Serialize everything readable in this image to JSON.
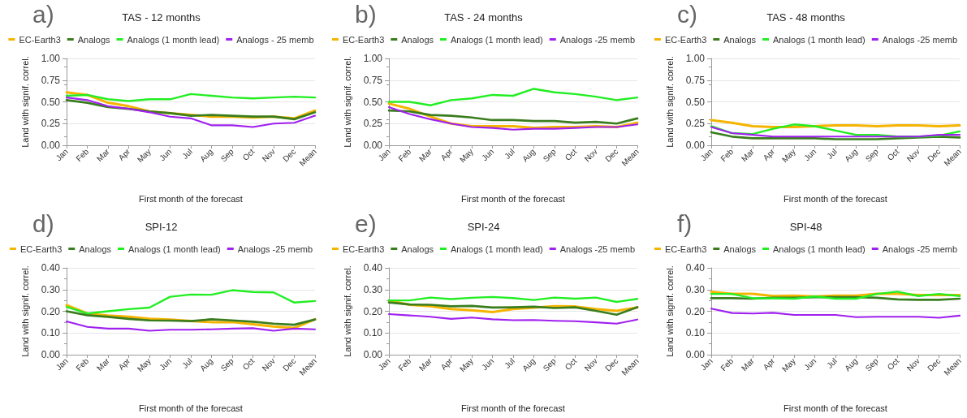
{
  "chart_data": [
    {
      "type": "line",
      "title": "TAS - 12 months",
      "annotations": [
        "a)"
      ],
      "xlabel": "First month of the forecast",
      "ylabel": "Land with signif. correl.",
      "categories": [
        "Jan",
        "Feb",
        "Mar",
        "Apr",
        "May",
        "Jun",
        "Jul",
        "Aug",
        "Sep",
        "Oct",
        "Nov",
        "Dec",
        "Mean"
      ],
      "ylim": [
        0,
        1
      ],
      "yticks": [
        {
          "value": 0,
          "label": "0.00"
        },
        {
          "value": 0.25,
          "label": "0.25"
        },
        {
          "value": 0.5,
          "label": "0.50"
        },
        {
          "value": 0.75,
          "label": "0.75"
        },
        {
          "value": 1,
          "label": "1.00"
        }
      ],
      "grid": "y",
      "legend": "top",
      "marker": "none",
      "line_style": "solid",
      "series": [
        {
          "name": "EC-Earth3",
          "color": "#f5b400",
          "values": [
            0.61,
            0.58,
            0.49,
            0.45,
            0.39,
            0.37,
            0.35,
            0.33,
            0.33,
            0.32,
            0.33,
            0.31,
            0.4
          ]
        },
        {
          "name": "Analogs",
          "color": "#3a7d1e",
          "values": [
            0.52,
            0.49,
            0.44,
            0.42,
            0.39,
            0.37,
            0.34,
            0.35,
            0.34,
            0.33,
            0.33,
            0.3,
            0.38
          ]
        },
        {
          "name": "Analogs (1 month lead)",
          "color": "#22ee22",
          "values": [
            0.57,
            0.58,
            0.53,
            0.51,
            0.53,
            0.53,
            0.59,
            0.57,
            0.55,
            0.54,
            0.55,
            0.56,
            0.55
          ]
        },
        {
          "name": "Analogs - 25 memb",
          "color": "#a020f0",
          "values": [
            0.55,
            0.52,
            0.45,
            0.42,
            0.38,
            0.33,
            0.31,
            0.23,
            0.23,
            0.21,
            0.25,
            0.26,
            0.34
          ]
        }
      ]
    },
    {
      "type": "line",
      "title": "TAS - 24 months",
      "annotations": [
        "b)"
      ],
      "xlabel": "First month of the forecast",
      "ylabel": "Land with signif. correl.",
      "categories": [
        "Jan",
        "Feb",
        "Mar",
        "Apr",
        "May",
        "Jun",
        "Jul",
        "Aug",
        "Sep",
        "Oct",
        "Nov",
        "Dec",
        "Mean"
      ],
      "ylim": [
        0,
        1
      ],
      "yticks": [
        {
          "value": 0,
          "label": "0.00"
        },
        {
          "value": 0.25,
          "label": "0.25"
        },
        {
          "value": 0.5,
          "label": "0.50"
        },
        {
          "value": 0.75,
          "label": "0.75"
        },
        {
          "value": 1,
          "label": "1.00"
        }
      ],
      "grid": "y",
      "legend": "top",
      "marker": "none",
      "line_style": "solid",
      "series": [
        {
          "name": "EC-Earth3",
          "color": "#f5b400",
          "values": [
            0.48,
            0.42,
            0.33,
            0.25,
            0.22,
            0.22,
            0.22,
            0.2,
            0.21,
            0.21,
            0.22,
            0.21,
            0.26
          ]
        },
        {
          "name": "Analogs",
          "color": "#3a7d1e",
          "values": [
            0.4,
            0.39,
            0.35,
            0.34,
            0.32,
            0.29,
            0.29,
            0.28,
            0.28,
            0.26,
            0.27,
            0.25,
            0.31
          ]
        },
        {
          "name": "Analogs (1 month lead)",
          "color": "#22ee22",
          "values": [
            0.5,
            0.5,
            0.46,
            0.52,
            0.54,
            0.58,
            0.57,
            0.65,
            0.61,
            0.59,
            0.56,
            0.52,
            0.55
          ]
        },
        {
          "name": "Analogs -25 memb",
          "color": "#a020f0",
          "values": [
            0.44,
            0.36,
            0.3,
            0.25,
            0.21,
            0.2,
            0.18,
            0.19,
            0.19,
            0.2,
            0.21,
            0.21,
            0.24
          ]
        }
      ]
    },
    {
      "type": "line",
      "title": "TAS - 48 months",
      "annotations": [
        "c)"
      ],
      "xlabel": "First month of the forecast",
      "ylabel": "Land with signif. correl.",
      "categories": [
        "Jan",
        "Feb",
        "Mar",
        "Apr",
        "May",
        "Jun",
        "Jul",
        "Aug",
        "Sep",
        "Oct",
        "Nov",
        "Dec",
        "Mean"
      ],
      "ylim": [
        0,
        1
      ],
      "yticks": [
        {
          "value": 0,
          "label": "0.00"
        },
        {
          "value": 0.25,
          "label": "0.25"
        },
        {
          "value": 0.5,
          "label": "0.50"
        },
        {
          "value": 0.75,
          "label": "0.75"
        },
        {
          "value": 1,
          "label": "1.00"
        }
      ],
      "grid": "y",
      "legend": "top",
      "marker": "none",
      "line_style": "solid",
      "series": [
        {
          "name": "EC-Earth3",
          "color": "#f5b400",
          "values": [
            0.29,
            0.26,
            0.22,
            0.21,
            0.21,
            0.22,
            0.23,
            0.23,
            0.22,
            0.23,
            0.23,
            0.22,
            0.23
          ]
        },
        {
          "name": "Analogs",
          "color": "#3a7d1e",
          "values": [
            0.15,
            0.1,
            0.08,
            0.08,
            0.08,
            0.08,
            0.07,
            0.07,
            0.07,
            0.08,
            0.09,
            0.1,
            0.09
          ]
        },
        {
          "name": "Analogs (1 month lead)",
          "color": "#22ee22",
          "values": [
            0.22,
            0.14,
            0.13,
            0.19,
            0.24,
            0.22,
            0.17,
            0.12,
            0.12,
            0.1,
            0.1,
            0.11,
            0.16
          ]
        },
        {
          "name": "Analogs -25 memb",
          "color": "#a020f0",
          "values": [
            0.21,
            0.14,
            0.12,
            0.1,
            0.1,
            0.1,
            0.1,
            0.1,
            0.1,
            0.1,
            0.1,
            0.12,
            0.12
          ]
        }
      ]
    },
    {
      "type": "line",
      "title": "SPI-12",
      "annotations": [
        "d)"
      ],
      "xlabel": "First month of the forecast",
      "ylabel": "Land with signif. correl.",
      "categories": [
        "Jan",
        "Feb",
        "Mar",
        "Apr",
        "May",
        "Jun",
        "Jul",
        "Aug",
        "Sep",
        "Oct",
        "Nov",
        "Dec",
        "Mean"
      ],
      "ylim": [
        0,
        0.4
      ],
      "yticks": [
        {
          "value": 0,
          "label": "0.00"
        },
        {
          "value": 0.1,
          "label": "0.10"
        },
        {
          "value": 0.2,
          "label": "0.20"
        },
        {
          "value": 0.3,
          "label": "0.30"
        },
        {
          "value": 0.4,
          "label": "0.40"
        }
      ],
      "grid": "y",
      "legend": "top",
      "marker": "none",
      "line_style": "solid",
      "series": [
        {
          "name": "EC-Earth3",
          "color": "#f5b400",
          "values": [
            0.228,
            0.19,
            0.18,
            0.175,
            0.165,
            0.162,
            0.155,
            0.15,
            0.15,
            0.14,
            0.13,
            0.123,
            0.163
          ]
        },
        {
          "name": "Analogs",
          "color": "#3a7d1e",
          "values": [
            0.2,
            0.182,
            0.174,
            0.165,
            0.158,
            0.157,
            0.155,
            0.163,
            0.158,
            0.152,
            0.143,
            0.138,
            0.162
          ]
        },
        {
          "name": "Analogs (1 month lead)",
          "color": "#22ee22",
          "values": [
            0.22,
            0.19,
            0.2,
            0.21,
            0.217,
            0.267,
            0.277,
            0.276,
            0.297,
            0.289,
            0.287,
            0.24,
            0.247
          ]
        },
        {
          "name": "Analogs -25 memb",
          "color": "#a020f0",
          "values": [
            0.153,
            0.128,
            0.12,
            0.12,
            0.11,
            0.115,
            0.115,
            0.117,
            0.12,
            0.122,
            0.11,
            0.12,
            0.117
          ]
        }
      ]
    },
    {
      "type": "line",
      "title": "SPI-24",
      "annotations": [
        "e)"
      ],
      "xlabel": "First month of the forecast",
      "ylabel": "Land with signif. correl.",
      "categories": [
        "Jan",
        "Feb",
        "Mar",
        "Apr",
        "May",
        "Jun",
        "Jul",
        "Aug",
        "Sep",
        "Oct",
        "Nov",
        "Dec",
        "Mean"
      ],
      "ylim": [
        0,
        0.4
      ],
      "yticks": [
        {
          "value": 0,
          "label": "0.00"
        },
        {
          "value": 0.1,
          "label": "0.10"
        },
        {
          "value": 0.2,
          "label": "0.20"
        },
        {
          "value": 0.3,
          "label": "0.30"
        },
        {
          "value": 0.4,
          "label": "0.40"
        }
      ],
      "grid": "y",
      "legend": "top",
      "marker": "none",
      "line_style": "solid",
      "series": [
        {
          "name": "EC-Earth3",
          "color": "#f5b400",
          "values": [
            0.25,
            0.23,
            0.223,
            0.21,
            0.205,
            0.196,
            0.21,
            0.217,
            0.223,
            0.222,
            0.21,
            0.202,
            0.218
          ]
        },
        {
          "name": "Analogs",
          "color": "#3a7d1e",
          "values": [
            0.241,
            0.231,
            0.23,
            0.223,
            0.225,
            0.217,
            0.218,
            0.221,
            0.215,
            0.218,
            0.202,
            0.184,
            0.219
          ]
        },
        {
          "name": "Analogs (1 month lead)",
          "color": "#22ee22",
          "values": [
            0.25,
            0.25,
            0.263,
            0.256,
            0.262,
            0.266,
            0.261,
            0.252,
            0.263,
            0.258,
            0.263,
            0.243,
            0.257
          ]
        },
        {
          "name": "Analogs -25 memb",
          "color": "#a020f0",
          "values": [
            0.187,
            0.181,
            0.175,
            0.165,
            0.171,
            0.163,
            0.159,
            0.16,
            0.156,
            0.154,
            0.149,
            0.143,
            0.162
          ]
        }
      ]
    },
    {
      "type": "line",
      "title": "SPI-48",
      "annotations": [
        "f)"
      ],
      "xlabel": "First month of the forecast",
      "ylabel": "Land with signif. correl.",
      "categories": [
        "Jan",
        "Feb",
        "Mar",
        "Apr",
        "May",
        "Jun",
        "Jul",
        "Aug",
        "Sep",
        "Oct",
        "Nov",
        "Dec",
        "Mean"
      ],
      "ylim": [
        0,
        0.4
      ],
      "yticks": [
        {
          "value": 0,
          "label": "0.00"
        },
        {
          "value": 0.1,
          "label": "0.10"
        },
        {
          "value": 0.2,
          "label": "0.20"
        },
        {
          "value": 0.3,
          "label": "0.30"
        },
        {
          "value": 0.4,
          "label": "0.40"
        }
      ],
      "grid": "y",
      "legend": "top",
      "marker": "none",
      "line_style": "solid",
      "series": [
        {
          "name": "EC-Earth3",
          "color": "#f5b400",
          "values": [
            0.29,
            0.28,
            0.28,
            0.27,
            0.272,
            0.268,
            0.272,
            0.272,
            0.28,
            0.28,
            0.275,
            0.275,
            0.275
          ]
        },
        {
          "name": "Analogs",
          "color": "#3a7d1e",
          "values": [
            0.26,
            0.26,
            0.258,
            0.262,
            0.262,
            0.265,
            0.265,
            0.265,
            0.262,
            0.255,
            0.253,
            0.253,
            0.258
          ]
        },
        {
          "name": "Analogs (1 month lead)",
          "color": "#22ee22",
          "values": [
            0.28,
            0.28,
            0.26,
            0.26,
            0.258,
            0.268,
            0.258,
            0.258,
            0.28,
            0.29,
            0.27,
            0.28,
            0.27
          ]
        },
        {
          "name": "Analogs -25 memb",
          "color": "#a020f0",
          "values": [
            0.212,
            0.192,
            0.19,
            0.193,
            0.183,
            0.183,
            0.183,
            0.173,
            0.175,
            0.175,
            0.175,
            0.17,
            0.18
          ]
        }
      ]
    }
  ]
}
